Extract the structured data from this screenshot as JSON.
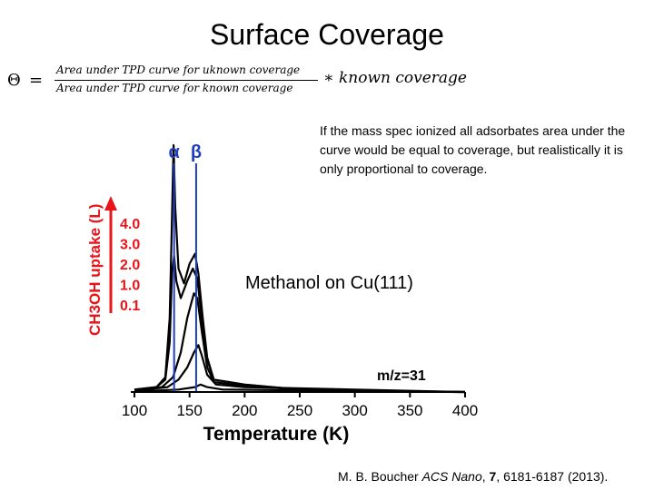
{
  "slide": {
    "title": "Surface Coverage",
    "equation": {
      "lhs": "Θ",
      "equals": "=",
      "numerator": "Area under TPD curve for uknown coverage",
      "denominator": "Area under TPD curve for known coverage",
      "multiplier": "∗ known coverage"
    },
    "note": "If the mass spec ionized all adsorbates area under the curve would be equal to coverage, but realistically it is only proportional to coverage.",
    "overlay_label": "Methanol on Cu(111)",
    "citation": {
      "author": "M. B. Boucher ",
      "journal": "ACS Nano",
      "volume": "7",
      "pages": ", 6181-6187 (2013)."
    }
  },
  "chart_data": {
    "type": "line",
    "xlabel": "Temperature (K)",
    "ylabel": "CH3OH uptake (L)",
    "x_ticks": [
      "100",
      "150",
      "200",
      "250",
      "300",
      "350",
      "400"
    ],
    "xlim": [
      100,
      400
    ],
    "peak_labels": [
      {
        "label": "α",
        "x": 136
      },
      {
        "label": "β",
        "x": 156
      }
    ],
    "annotation": "m/z=31",
    "legend_title": "CH3OH uptake (L)",
    "legend_entries": [
      "4.0",
      "3.0",
      "2.0",
      "1.0",
      "0.1"
    ],
    "colors": {
      "curve": "#000000",
      "markers": "#1f3fbf",
      "legend": "#e8141a"
    },
    "series": [
      {
        "name": "4.0",
        "points": [
          [
            100,
            0.01
          ],
          [
            120,
            0.02
          ],
          [
            128,
            0.06
          ],
          [
            132,
            0.3
          ],
          [
            134,
            0.7
          ],
          [
            135.5,
            1.0
          ],
          [
            137,
            0.75
          ],
          [
            140,
            0.5
          ],
          [
            145,
            0.44
          ],
          [
            150,
            0.52
          ],
          [
            155,
            0.56
          ],
          [
            158,
            0.48
          ],
          [
            162,
            0.3
          ],
          [
            166,
            0.14
          ],
          [
            172,
            0.05
          ],
          [
            200,
            0.03
          ],
          [
            250,
            0.01
          ],
          [
            300,
            0.005
          ],
          [
            350,
            0.002
          ],
          [
            400,
            0.0
          ]
        ]
      },
      {
        "name": "3.0",
        "points": [
          [
            100,
            0.01
          ],
          [
            120,
            0.02
          ],
          [
            128,
            0.05
          ],
          [
            132,
            0.2
          ],
          [
            134,
            0.48
          ],
          [
            136,
            0.55
          ],
          [
            138,
            0.45
          ],
          [
            142,
            0.38
          ],
          [
            148,
            0.45
          ],
          [
            153,
            0.5
          ],
          [
            157,
            0.46
          ],
          [
            161,
            0.3
          ],
          [
            166,
            0.13
          ],
          [
            172,
            0.05
          ],
          [
            200,
            0.03
          ],
          [
            250,
            0.01
          ],
          [
            300,
            0.005
          ],
          [
            400,
            0.0
          ]
        ]
      },
      {
        "name": "2.0",
        "points": [
          [
            100,
            0.005
          ],
          [
            125,
            0.02
          ],
          [
            135,
            0.06
          ],
          [
            142,
            0.16
          ],
          [
            148,
            0.3
          ],
          [
            154,
            0.4
          ],
          [
            157,
            0.38
          ],
          [
            161,
            0.25
          ],
          [
            166,
            0.1
          ],
          [
            172,
            0.04
          ],
          [
            200,
            0.025
          ],
          [
            250,
            0.01
          ],
          [
            400,
            0.0
          ]
        ]
      },
      {
        "name": "1.0",
        "points": [
          [
            100,
            0.005
          ],
          [
            130,
            0.02
          ],
          [
            140,
            0.05
          ],
          [
            148,
            0.1
          ],
          [
            154,
            0.16
          ],
          [
            158,
            0.19
          ],
          [
            161,
            0.15
          ],
          [
            166,
            0.07
          ],
          [
            174,
            0.03
          ],
          [
            200,
            0.02
          ],
          [
            400,
            0.0
          ]
        ]
      },
      {
        "name": "0.1",
        "points": [
          [
            100,
            0.002
          ],
          [
            140,
            0.01
          ],
          [
            155,
            0.02
          ],
          [
            160,
            0.03
          ],
          [
            166,
            0.02
          ],
          [
            180,
            0.01
          ],
          [
            400,
            0.0
          ]
        ]
      }
    ]
  }
}
